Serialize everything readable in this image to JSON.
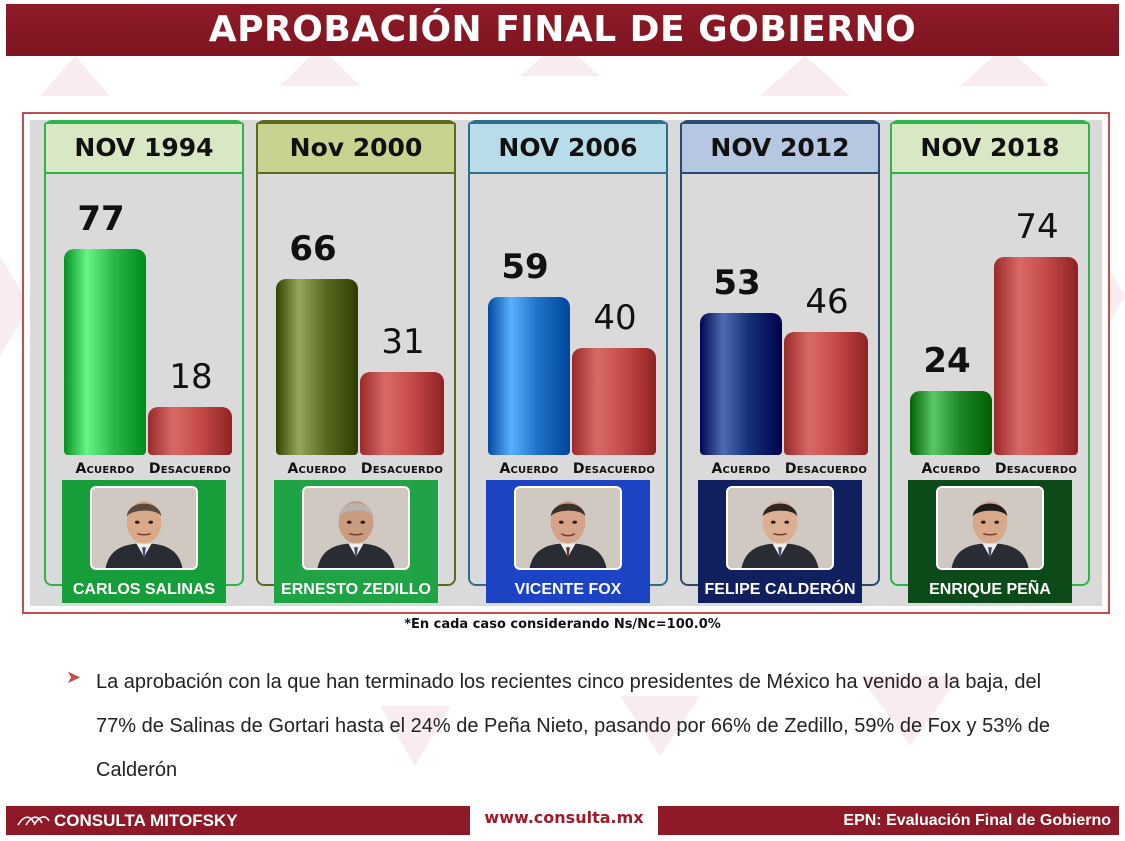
{
  "title": "APROBACIÓN FINAL DE GOBIERNO",
  "chart_data": {
    "type": "bar",
    "categories": [
      "Acuerdo",
      "Desacuerdo"
    ],
    "panels": [
      {
        "period": "NOV 1994",
        "president": "CARLOS SALINAS",
        "acuerdo": 77,
        "desacuerdo": 18
      },
      {
        "period": "Nov 2000",
        "president": "ERNESTO ZEDILLO",
        "acuerdo": 66,
        "desacuerdo": 31
      },
      {
        "period": "NOV 2006",
        "president": "VICENTE FOX",
        "acuerdo": 59,
        "desacuerdo": 40
      },
      {
        "period": "NOV 2012",
        "president": "FELIPE CALDERÓN",
        "acuerdo": 53,
        "desacuerdo": 46
      },
      {
        "period": "NOV 2018",
        "president": "ENRIQUE PEÑA",
        "acuerdo": 24,
        "desacuerdo": 74
      }
    ],
    "ylim": [
      0,
      100
    ],
    "colors": {
      "acuerdo": [
        "#2db84a",
        "#5a6b20",
        "#1f73c9",
        "#132f78",
        "#1e8a2b"
      ],
      "desacuerdo": "#c74c4a",
      "panel_borders": [
        "#2fb34b",
        "#5b6a1f",
        "#2d6e8a",
        "#2b4a72",
        "#2fb34b"
      ],
      "header_bg": [
        "#d9e8c4",
        "#c7d38e",
        "#b9dde8",
        "#b6c7e2",
        "#d9e8c4"
      ],
      "name_bg": [
        "#169e3b",
        "#20a344",
        "#1b43c4",
        "#101f5e",
        "#0d4a1a"
      ]
    }
  },
  "labels": {
    "acuerdo": "Acuerdo",
    "desacuerdo": "Desacuerdo"
  },
  "footnote": "*En cada caso considerando Ns/Nc=100.0%",
  "body_text": "La aprobación con la que han terminado los recientes cinco presidentes de México ha venido a la baja, del 77% de Salinas de Gortari hasta el 24% de Peña Nieto, pasando por 66% de Zedillo, 59% de Fox y 53% de Calderón",
  "footer": {
    "logo": "CONSULTA MITOFSKY",
    "url": "www.consulta.mx",
    "right": "EPN: Evaluación Final de Gobierno"
  }
}
